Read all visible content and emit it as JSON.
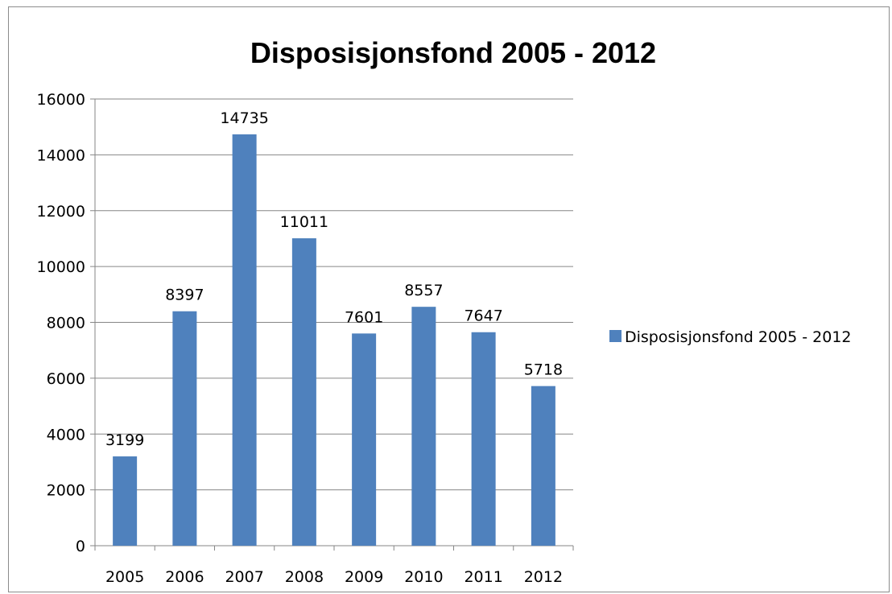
{
  "chart_data": {
    "type": "bar",
    "title": "Disposisjonsfond 2005 - 2012",
    "categories": [
      "2005",
      "2006",
      "2007",
      "2008",
      "2009",
      "2010",
      "2011",
      "2012"
    ],
    "series": [
      {
        "name": "Disposisjonsfond 2005 - 2012",
        "values": [
          3199,
          8397,
          14735,
          11011,
          7601,
          8557,
          7647,
          5718
        ],
        "color": "#4f81bd"
      }
    ],
    "data_labels": [
      "3199",
      "8397",
      "14735",
      "11011",
      "7601",
      "8557",
      "7647",
      "5718"
    ],
    "y_ticks": [
      "0",
      "2000",
      "4000",
      "6000",
      "8000",
      "10000",
      "12000",
      "14000",
      "16000"
    ],
    "ylim": [
      0,
      16000
    ],
    "grid": true,
    "legend_position": "right",
    "xlabel": "",
    "ylabel": ""
  }
}
